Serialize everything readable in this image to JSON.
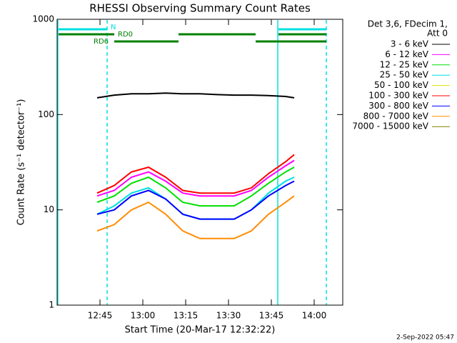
{
  "chart_data": {
    "type": "line",
    "title": "RHESSI Observing Summary Count Rates",
    "x_label": "Start Time (20-Mar-17 12:32:22)",
    "y_label": "Count Rate (s⁻¹ detector⁻¹)",
    "legend_title": [
      "Det 3,6, FDecim 1,",
      "Att 0"
    ],
    "annotations": [
      "N",
      "RD0",
      "RD6"
    ],
    "footer": "2-Sep-2022 05:47",
    "log_y": true,
    "xlim": [
      750,
      850
    ],
    "xticks": [
      {
        "value": 765,
        "label": "12:45"
      },
      {
        "value": 780,
        "label": "13:00"
      },
      {
        "value": 795,
        "label": "13:15"
      },
      {
        "value": 810,
        "label": "13:30"
      },
      {
        "value": 825,
        "label": "13:45"
      },
      {
        "value": 840,
        "label": "14:00"
      }
    ],
    "ylim": [
      1,
      1000
    ],
    "yticks": [
      1,
      10,
      100,
      1000
    ],
    "x": [
      764,
      770,
      776,
      782,
      788,
      794,
      800,
      806,
      812,
      818,
      824,
      830,
      833
    ],
    "series": [
      {
        "name": "3 - 6 keV",
        "color": "#000000",
        "values": [
          150,
          160,
          165,
          165,
          168,
          165,
          165,
          162,
          160,
          160,
          158,
          155,
          150
        ]
      },
      {
        "name": "6 - 12 keV",
        "color": "#ff00ff",
        "values": [
          14,
          16,
          22,
          25,
          20,
          15,
          14,
          14,
          14,
          16,
          22,
          29,
          33
        ]
      },
      {
        "name": "12 - 25 keV",
        "color": "#00e000",
        "values": [
          12,
          14,
          19,
          22,
          17,
          12,
          11,
          11,
          11,
          14,
          19,
          25,
          28
        ]
      },
      {
        "name": "25 - 50 keV",
        "color": "#00e0e0",
        "values": [
          9,
          11,
          15,
          17,
          13,
          9,
          8,
          8,
          8,
          10,
          15,
          20,
          22
        ]
      },
      {
        "name": "50 - 100 keV",
        "color": "#e0e000",
        "values": [
          null,
          null,
          null,
          null,
          null,
          null,
          null,
          null,
          null,
          null,
          null,
          null,
          null
        ]
      },
      {
        "name": "100 - 300 keV",
        "color": "#ff0000",
        "values": [
          15,
          18,
          25,
          28,
          22,
          16,
          15,
          15,
          15,
          17,
          24,
          32,
          38
        ]
      },
      {
        "name": "300 - 800 keV",
        "color": "#0000ff",
        "values": [
          9,
          10,
          14,
          16,
          13,
          9,
          8,
          8,
          8,
          10,
          14,
          18,
          20
        ]
      },
      {
        "name": "800 - 7000 keV",
        "color": "#ff8c00",
        "values": [
          6,
          7,
          10,
          12,
          9,
          6,
          5,
          5,
          5,
          6,
          9,
          12,
          14
        ]
      },
      {
        "name": "7000 - 15000 keV",
        "color": "#808000",
        "values": [
          null,
          null,
          null,
          null,
          null,
          null,
          null,
          null,
          null,
          null,
          null,
          null,
          null
        ]
      }
    ]
  }
}
